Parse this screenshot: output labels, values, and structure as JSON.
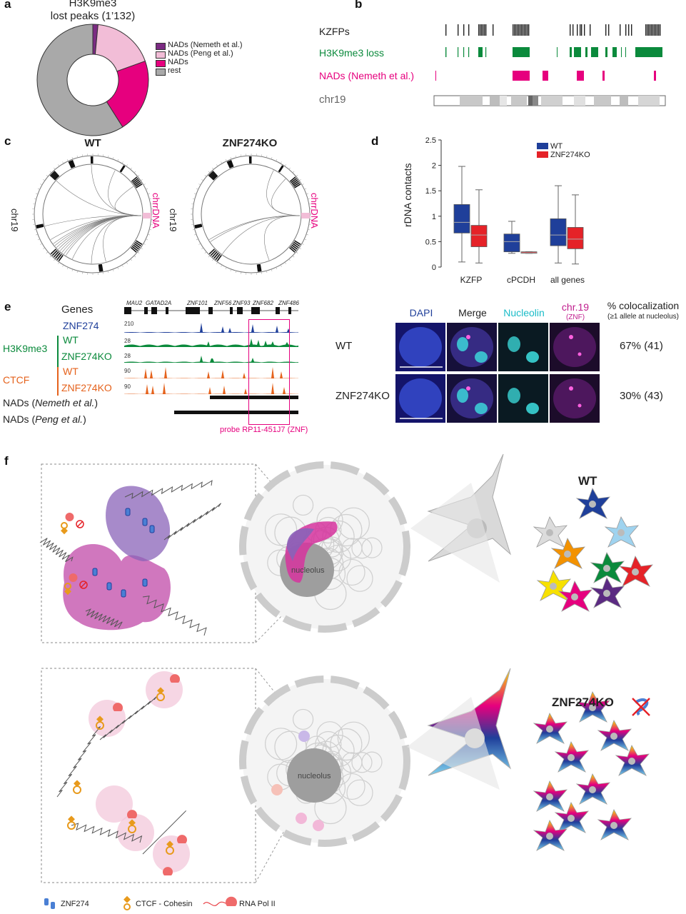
{
  "panel_letters": {
    "a": "a",
    "b": "b",
    "c": "c",
    "d": "d",
    "e": "e",
    "f": "f"
  },
  "panel_a": {
    "title_line1": "H3K9me3",
    "title_line2": "lost peaks (1’132)",
    "legend": [
      {
        "label": "NADs (Nemeth et al.)",
        "color": "#7b2a82"
      },
      {
        "label": "NADs (Peng et al.)",
        "color": "#f2bdd7"
      },
      {
        "label": "NADs",
        "color": "#e6007e"
      },
      {
        "label": "rest",
        "color": "#a9a9a9"
      }
    ]
  },
  "panel_b": {
    "tracks": [
      {
        "label": "KZFPs",
        "color": "#222222"
      },
      {
        "label": "H3K9me3 loss",
        "color": "#0b8a3c"
      },
      {
        "label": "NADs (Nemeth et al.)",
        "color": "#e6007e"
      },
      {
        "label": "chr19",
        "color": "#666666"
      }
    ]
  },
  "panel_c": {
    "wt_title": "WT",
    "ko_title": "ZNF274KO",
    "chr_label": "chr19",
    "rdna_label": "chrrDNA"
  },
  "chart_data": {
    "type": "box",
    "ylabel": "rDNA contacts",
    "ylim": [
      0,
      2.5
    ],
    "yticks": [
      0,
      0.5,
      1,
      1.5,
      2,
      2.5
    ],
    "categories": [
      "KZFP",
      "cPCDH",
      "all genes"
    ],
    "legend_position": "top-right",
    "series": [
      {
        "name": "WT",
        "color": "#1f3f9a",
        "boxes": [
          {
            "min": 0.1,
            "q1": 0.67,
            "median": 0.88,
            "q3": 1.23,
            "max": 1.98
          },
          {
            "min": 0.27,
            "q1": 0.3,
            "median": 0.5,
            "q3": 0.65,
            "max": 0.9
          },
          {
            "min": 0.08,
            "q1": 0.42,
            "median": 0.63,
            "q3": 0.95,
            "max": 1.6
          }
        ]
      },
      {
        "name": "ZNF274KO",
        "color": "#e52228",
        "boxes": [
          {
            "min": 0.08,
            "q1": 0.4,
            "median": 0.63,
            "q3": 0.82,
            "max": 1.52
          },
          {
            "min": 0.27,
            "q1": 0.27,
            "median": 0.28,
            "q3": 0.3,
            "max": 0.3
          },
          {
            "min": 0.06,
            "q1": 0.36,
            "median": 0.55,
            "q3": 0.78,
            "max": 1.42
          }
        ]
      }
    ]
  },
  "panel_e": {
    "genes_label": "Genes",
    "gene_names": [
      "MAU2",
      "GATAD2A",
      "ZNF101",
      "ZNF56",
      "ZNF93",
      "ZNF682",
      "ZNF486"
    ],
    "tracks": {
      "znf274": "ZNF274",
      "h3k9me3": "H3K9me3",
      "h3_wt": "WT",
      "h3_ko": "ZNF274KO",
      "ctcf": "CTCF",
      "ctcf_wt": "WT",
      "ctcf_ko": "ZNF274KO",
      "nads_nemeth_prefix": "NADs (",
      "nads_nemeth_italic": "Nemeth et al.",
      "nads_peng_italic": "Peng et al.",
      "nads_suffix": ")"
    },
    "scales": [
      "210",
      "28",
      "28",
      "90",
      "90"
    ],
    "probe_label": "probe RP11-451J7 (ZNF)",
    "microscopy": {
      "columns": [
        "DAPI",
        "Merge",
        "Nucleolin",
        "chr.19"
      ],
      "chr_sub": "(ZNF)",
      "coloc_title": "% colocalization",
      "coloc_sub": "(≥1 allele at nucleolus)",
      "rows": [
        {
          "label": "WT",
          "value": "67% (41)"
        },
        {
          "label": "ZNF274KO",
          "value": "30% (43)"
        }
      ]
    }
  },
  "panel_f": {
    "nucleolus_label": "nucleolus",
    "wt_label": "WT",
    "ko_label": "ZNF274KO",
    "legend": [
      {
        "label": "ZNF274",
        "icon": "znf274-icon"
      },
      {
        "label": "CTCF - Cohesin",
        "icon": "ctcf-cohesin-icon"
      },
      {
        "label": "RNA Pol II",
        "icon": "rna-pol-ii-icon"
      }
    ],
    "wt_cell_colors": [
      "#dcdcdc",
      "#1f3f9a",
      "#f39200",
      "#9fd3ef",
      "#0b8a3c",
      "#f7e100",
      "#e6007e",
      "#5b2a82",
      "#e52228"
    ]
  }
}
